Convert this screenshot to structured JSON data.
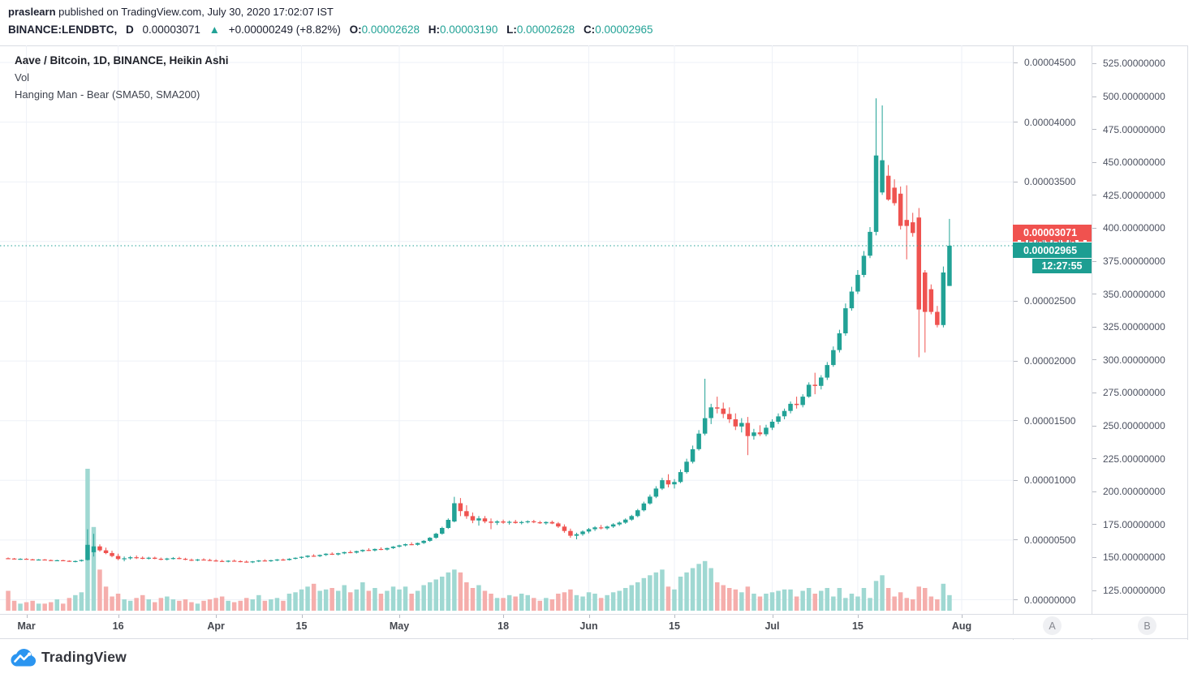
{
  "published_bar": {
    "author": "praslearn",
    "rest": " published on TradingView.com, July 30, 2020 17:02:07 IST"
  },
  "symbol_bar": {
    "symbol": "BINANCE:LENDBTC,",
    "interval": "D",
    "last": "0.00003071",
    "arrow": "▲",
    "change": "+0.00000249 (+8.82%)",
    "o_label": "O:",
    "o": "0.00002628",
    "h_label": "H:",
    "h": "0.00003190",
    "l_label": "L:",
    "l": "0.00002628",
    "c_label": "C:",
    "c": "0.00002965"
  },
  "legend": {
    "title": "Aave / Bitcoin, 1D, BINANCE, Heikin Ashi",
    "line2": "Vol",
    "line3": "Hanging Man - Bear (SMA50, SMA200)"
  },
  "price_tags": {
    "last_red": "0.00003071",
    "close_teal": "0.00002965",
    "countdown": "12:27:55"
  },
  "axes": {
    "price_axis_labels": [
      "0.00004500",
      "0.00004000",
      "0.00003500",
      "0.00003000",
      "0.00002500",
      "0.00002000",
      "0.00001500",
      "0.00001000",
      "0.00000500",
      "0.00000000"
    ],
    "secondary_axis_labels": [
      "525.00000000",
      "500.00000000",
      "475.00000000",
      "450.00000000",
      "425.00000000",
      "400.00000000",
      "375.00000000",
      "350.00000000",
      "325.00000000",
      "300.00000000",
      "275.00000000",
      "250.00000000",
      "225.00000000",
      "200.00000000",
      "175.00000000",
      "150.00000000",
      "125.00000000"
    ],
    "time_ticks": [
      {
        "label": "Mar",
        "i": 3
      },
      {
        "label": "16",
        "i": 18
      },
      {
        "label": "Apr",
        "i": 34
      },
      {
        "label": "15",
        "i": 48
      },
      {
        "label": "May",
        "i": 64
      },
      {
        "label": "18",
        "i": 81
      },
      {
        "label": "Jun",
        "i": 95
      },
      {
        "label": "15",
        "i": 109
      },
      {
        "label": "Jul",
        "i": 125
      },
      {
        "label": "15",
        "i": 139
      },
      {
        "label": "Aug",
        "i": 156
      }
    ]
  },
  "buttons": {
    "axis_a": "A",
    "axis_b": "B"
  },
  "footer": {
    "brand": "TradingView"
  },
  "colors": {
    "up": "#22a296",
    "down": "#ef5350",
    "up_volume": "#9fd8d2",
    "down_volume": "#f5aeac",
    "label_red_bg": "#f0524f",
    "label_teal_bg": "#1d9e92",
    "grid": "#eef1f7",
    "border": "#dadde3",
    "dotted_close_line": "#22a296"
  },
  "chart_data": {
    "type": "candlestick",
    "style": "Heikin Ashi",
    "symbol": "BINANCE:LENDBTC",
    "timeframe": "1D",
    "title": "Aave / Bitcoin, 1D, BINANCE, Heikin Ashi",
    "price_unit": "satoshi (1e-8 BTC)",
    "price_axis_range_btc": [
      0.0,
      4.5e-05
    ],
    "secondary_axis_range": [
      125,
      525
    ],
    "start_date": "2020-02-27",
    "close_line_sats": 2965,
    "last_price_sats": 3071,
    "volume_unit": "relative (0-100 of max bar)",
    "candles_ohlcv_sats": [
      [
        348,
        354,
        342,
        345,
        14
      ],
      [
        345,
        350,
        337,
        340,
        7
      ],
      [
        340,
        347,
        335,
        343,
        5
      ],
      [
        343,
        348,
        336,
        338,
        6
      ],
      [
        338,
        343,
        331,
        334,
        7
      ],
      [
        334,
        341,
        329,
        337,
        5
      ],
      [
        337,
        341,
        330,
        332,
        5
      ],
      [
        332,
        337,
        325,
        328,
        6
      ],
      [
        328,
        335,
        323,
        331,
        8
      ],
      [
        331,
        335,
        324,
        326,
        5
      ],
      [
        326,
        331,
        317,
        320,
        9
      ],
      [
        320,
        329,
        313,
        324,
        11
      ],
      [
        324,
        337,
        319,
        333,
        13
      ],
      [
        333,
        590,
        328,
        460,
        100
      ],
      [
        398,
        552,
        362,
        447,
        59
      ],
      [
        447,
        464,
        402,
        414,
        29
      ],
      [
        414,
        436,
        381,
        391,
        17
      ],
      [
        391,
        411,
        356,
        366,
        10
      ],
      [
        366,
        386,
        331,
        341,
        12
      ],
      [
        341,
        362,
        322,
        347,
        8
      ],
      [
        347,
        366,
        336,
        356,
        7
      ],
      [
        356,
        371,
        341,
        351,
        9
      ],
      [
        351,
        363,
        339,
        345,
        11
      ],
      [
        345,
        359,
        337,
        352,
        8
      ],
      [
        352,
        361,
        339,
        343,
        6
      ],
      [
        343,
        353,
        331,
        337,
        9
      ],
      [
        337,
        351,
        329,
        345,
        10
      ],
      [
        345,
        357,
        337,
        349,
        8
      ],
      [
        349,
        359,
        339,
        343,
        7
      ],
      [
        343,
        351,
        331,
        335,
        8
      ],
      [
        335,
        345,
        325,
        331,
        6
      ],
      [
        331,
        341,
        323,
        337,
        5
      ],
      [
        337,
        347,
        329,
        333,
        7
      ],
      [
        333,
        343,
        323,
        329,
        8
      ],
      [
        329,
        339,
        319,
        325,
        9
      ],
      [
        325,
        335,
        317,
        321,
        10
      ],
      [
        321,
        331,
        313,
        327,
        7
      ],
      [
        327,
        337,
        319,
        323,
        6
      ],
      [
        323,
        331,
        313,
        319,
        7
      ],
      [
        319,
        329,
        311,
        315,
        9
      ],
      [
        315,
        325,
        307,
        321,
        8
      ],
      [
        321,
        333,
        315,
        329,
        11
      ],
      [
        329,
        339,
        321,
        325,
        7
      ],
      [
        325,
        335,
        317,
        331,
        8
      ],
      [
        331,
        341,
        323,
        337,
        9
      ],
      [
        337,
        345,
        327,
        333,
        7
      ],
      [
        333,
        347,
        329,
        343,
        12
      ],
      [
        343,
        355,
        337,
        351,
        13
      ],
      [
        351,
        363,
        343,
        359,
        15
      ],
      [
        359,
        373,
        351,
        369,
        17
      ],
      [
        369,
        381,
        359,
        365,
        19
      ],
      [
        365,
        379,
        357,
        375,
        14
      ],
      [
        375,
        389,
        367,
        385,
        15
      ],
      [
        385,
        397,
        375,
        379,
        16
      ],
      [
        379,
        393,
        371,
        389,
        14
      ],
      [
        389,
        403,
        381,
        399,
        18
      ],
      [
        399,
        413,
        389,
        395,
        13
      ],
      [
        395,
        411,
        387,
        407,
        15
      ],
      [
        407,
        421,
        399,
        417,
        20
      ],
      [
        417,
        431,
        409,
        413,
        14
      ],
      [
        413,
        429,
        405,
        425,
        16
      ],
      [
        425,
        439,
        415,
        421,
        12
      ],
      [
        421,
        437,
        413,
        433,
        14
      ],
      [
        433,
        449,
        425,
        445,
        17
      ],
      [
        445,
        461,
        437,
        455,
        15
      ],
      [
        455,
        471,
        447,
        465,
        17
      ],
      [
        465,
        481,
        457,
        461,
        12
      ],
      [
        461,
        479,
        453,
        475,
        14
      ],
      [
        475,
        499,
        467,
        493,
        18
      ],
      [
        493,
        525,
        485,
        519,
        20
      ],
      [
        519,
        561,
        511,
        553,
        22
      ],
      [
        553,
        611,
        545,
        601,
        24
      ],
      [
        601,
        681,
        593,
        669,
        27
      ],
      [
        655,
        862,
        648,
        808,
        29
      ],
      [
        808,
        852,
        700,
        742,
        27
      ],
      [
        742,
        791,
        678,
        700,
        20
      ],
      [
        700,
        731,
        641,
        664,
        16
      ],
      [
        664,
        701,
        621,
        681,
        18
      ],
      [
        681,
        701,
        641,
        655,
        14
      ],
      [
        655,
        681,
        591,
        645,
        12
      ],
      [
        645,
        666,
        626,
        656,
        9
      ],
      [
        656,
        671,
        636,
        646,
        9
      ],
      [
        646,
        663,
        629,
        653,
        11
      ],
      [
        653,
        669,
        637,
        643,
        10
      ],
      [
        643,
        661,
        631,
        651,
        12
      ],
      [
        651,
        665,
        639,
        657,
        11
      ],
      [
        657,
        669,
        641,
        649,
        9
      ],
      [
        649,
        661,
        635,
        641,
        7
      ],
      [
        641,
        657,
        629,
        651,
        9
      ],
      [
        651,
        663,
        633,
        639,
        8
      ],
      [
        639,
        651,
        601,
        613,
        12
      ],
      [
        613,
        631,
        561,
        576,
        13
      ],
      [
        576,
        596,
        519,
        536,
        15
      ],
      [
        536,
        561,
        506,
        549,
        11
      ],
      [
        549,
        581,
        536,
        571,
        10
      ],
      [
        571,
        601,
        556,
        591,
        13
      ],
      [
        591,
        616,
        576,
        606,
        12
      ],
      [
        606,
        626,
        589,
        599,
        9
      ],
      [
        599,
        621,
        586,
        613,
        11
      ],
      [
        613,
        641,
        601,
        631,
        13
      ],
      [
        631,
        656,
        619,
        646,
        14
      ],
      [
        646,
        681,
        636,
        671,
        16
      ],
      [
        671,
        711,
        661,
        701,
        18
      ],
      [
        701,
        761,
        691,
        749,
        20
      ],
      [
        749,
        821,
        739,
        806,
        23
      ],
      [
        806,
        881,
        796,
        863,
        25
      ],
      [
        863,
        951,
        851,
        931,
        27
      ],
      [
        931,
        1021,
        919,
        1001,
        29
      ],
      [
        1001,
        1051,
        941,
        966,
        17
      ],
      [
        966,
        1011,
        931,
        986,
        15
      ],
      [
        986,
        1091,
        976,
        1069,
        24
      ],
      [
        1069,
        1181,
        1056,
        1156,
        27
      ],
      [
        1156,
        1291,
        1141,
        1261,
        30
      ],
      [
        1261,
        1421,
        1249,
        1391,
        33
      ],
      [
        1391,
        1851,
        1376,
        1521,
        35
      ],
      [
        1521,
        1641,
        1471,
        1611,
        30
      ],
      [
        1611,
        1701,
        1561,
        1601,
        20
      ],
      [
        1601,
        1651,
        1521,
        1556,
        18
      ],
      [
        1556,
        1611,
        1481,
        1511,
        16
      ],
      [
        1511,
        1561,
        1421,
        1451,
        15
      ],
      [
        1451,
        1521,
        1401,
        1481,
        13
      ],
      [
        1481,
        1531,
        1211,
        1371,
        17
      ],
      [
        1371,
        1431,
        1341,
        1401,
        12
      ],
      [
        1401,
        1461,
        1371,
        1386,
        10
      ],
      [
        1386,
        1466,
        1369,
        1441,
        12
      ],
      [
        1441,
        1511,
        1421,
        1491,
        13
      ],
      [
        1491,
        1561,
        1471,
        1536,
        14
      ],
      [
        1536,
        1601,
        1511,
        1581,
        15
      ],
      [
        1581,
        1661,
        1561,
        1641,
        15
      ],
      [
        1641,
        1701,
        1601,
        1631,
        10
      ],
      [
        1631,
        1721,
        1611,
        1701,
        14
      ],
      [
        1701,
        1821,
        1691,
        1801,
        16
      ],
      [
        1801,
        1901,
        1721,
        1791,
        12
      ],
      [
        1791,
        1881,
        1761,
        1861,
        14
      ],
      [
        1861,
        1991,
        1841,
        1966,
        16
      ],
      [
        1966,
        2121,
        1951,
        2091,
        10
      ],
      [
        2091,
        2261,
        2071,
        2231,
        16
      ],
      [
        2231,
        2481,
        2211,
        2441,
        9
      ],
      [
        2441,
        2621,
        2421,
        2581,
        12
      ],
      [
        2581,
        2761,
        2561,
        2721,
        10
      ],
      [
        2721,
        2921,
        2701,
        2881,
        16
      ],
      [
        2881,
        3121,
        2861,
        3081,
        9
      ],
      [
        3081,
        4200,
        3051,
        3721,
        21
      ],
      [
        3411,
        4140,
        3391,
        3681,
        25
      ],
      [
        3551,
        3641,
        3341,
        3351,
        16
      ],
      [
        3451,
        3521,
        3301,
        3321,
        10
      ],
      [
        3401,
        3461,
        3101,
        3131,
        13
      ],
      [
        3181,
        3471,
        2851,
        3131,
        9
      ],
      [
        3161,
        3241,
        3041,
        3071,
        8
      ],
      [
        3201,
        3281,
        2031,
        2431,
        17
      ],
      [
        2741,
        2761,
        2071,
        2411,
        16
      ],
      [
        2601,
        2641,
        2391,
        2411,
        10
      ],
      [
        2411,
        2461,
        2281,
        2301,
        8
      ],
      [
        2301,
        2791,
        2281,
        2741,
        19
      ],
      [
        2628,
        3190,
        2628,
        2965,
        11
      ]
    ]
  }
}
